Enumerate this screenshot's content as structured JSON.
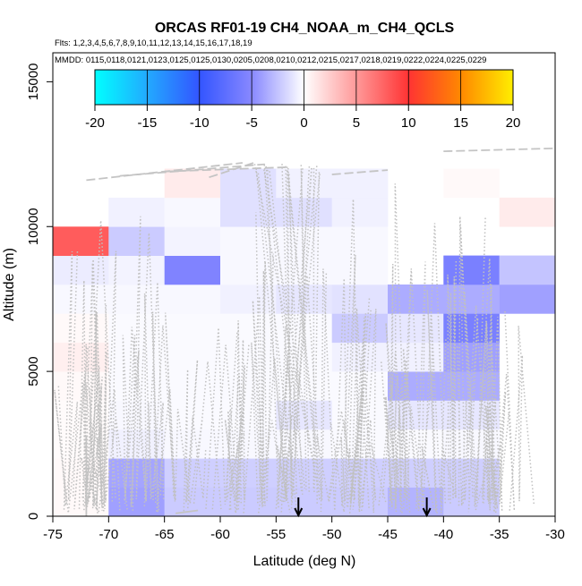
{
  "chart_data": {
    "type": "heatmap",
    "title": "ORCAS RF01-19 CH4_NOAA_m_CH4_QCLS",
    "flights_text": "Flts: 1,2,3,4,5,6,7,8,9,10,11,12,13,14,15,16,17,18,19",
    "dates_text": "MMDD: 0115,0118,0121,0123,0125,0125,0130,0205,0208,0210,0212,0215,0217,0218,0219,0222,0224,0225,0229",
    "xlabel": "Latitude (deg N)",
    "ylabel": "Altitude (m)",
    "xlim": [
      -75,
      -30
    ],
    "ylim": [
      0,
      16000
    ],
    "x_ticks": [
      -75,
      -70,
      -65,
      -60,
      -55,
      -50,
      -45,
      -40,
      -35,
      -30
    ],
    "x_tick_labels": [
      "-75",
      "-70",
      "-65",
      "-60",
      "-55",
      "-50",
      "-45",
      "-40",
      "-35",
      "-30"
    ],
    "y_ticks": [
      0,
      5000,
      10000,
      15000
    ],
    "y_tick_labels": [
      "0",
      "5000",
      "10000",
      "15000"
    ],
    "colorbar": {
      "range": [
        -20,
        20
      ],
      "ticks": [
        -20,
        -15,
        -10,
        -5,
        0,
        5,
        10,
        15,
        20
      ],
      "tick_labels": [
        "-20",
        "-15",
        "-10",
        "-5",
        "0",
        "5",
        "10",
        "15",
        "20"
      ]
    },
    "bin_size": {
      "lat": 5,
      "alt": 1000
    },
    "cells": [
      {
        "lat": -75,
        "alt": 0,
        "value": 0.3
      },
      {
        "lat": -75,
        "alt": 1000,
        "value": 0.3
      },
      {
        "lat": -75,
        "alt": 2000,
        "value": 0.2
      },
      {
        "lat": -75,
        "alt": 3000,
        "value": 0.2
      },
      {
        "lat": -75,
        "alt": 4000,
        "value": 0.3
      },
      {
        "lat": -75,
        "alt": 5000,
        "value": 0.8
      },
      {
        "lat": -75,
        "alt": 6000,
        "value": 0.3
      },
      {
        "lat": -75,
        "alt": 7000,
        "value": -0.3
      },
      {
        "lat": -75,
        "alt": 8000,
        "value": -0.8
      },
      {
        "lat": -75,
        "alt": 9000,
        "value": 8.0
      },
      {
        "lat": -70,
        "alt": 0,
        "value": -4.0
      },
      {
        "lat": -70,
        "alt": 1000,
        "value": -3.8
      },
      {
        "lat": -70,
        "alt": 2000,
        "value": -0.6
      },
      {
        "lat": -70,
        "alt": 3000,
        "value": -0.3
      },
      {
        "lat": -70,
        "alt": 4000,
        "value": -0.2
      },
      {
        "lat": -70,
        "alt": 5000,
        "value": -0.2
      },
      {
        "lat": -70,
        "alt": 6000,
        "value": -0.2
      },
      {
        "lat": -70,
        "alt": 7000,
        "value": -0.3
      },
      {
        "lat": -70,
        "alt": 8000,
        "value": -0.5
      },
      {
        "lat": -70,
        "alt": 9000,
        "value": -2.2
      },
      {
        "lat": -70,
        "alt": 10000,
        "value": -0.6
      },
      {
        "lat": -65,
        "alt": 0,
        "value": -2.2
      },
      {
        "lat": -65,
        "alt": 1000,
        "value": -2.0
      },
      {
        "lat": -65,
        "alt": 2000,
        "value": -0.3
      },
      {
        "lat": -65,
        "alt": 3000,
        "value": -0.2
      },
      {
        "lat": -65,
        "alt": 4000,
        "value": -0.2
      },
      {
        "lat": -65,
        "alt": 5000,
        "value": -0.2
      },
      {
        "lat": -65,
        "alt": 6000,
        "value": -0.2
      },
      {
        "lat": -65,
        "alt": 7000,
        "value": -0.3
      },
      {
        "lat": -65,
        "alt": 8000,
        "value": -5.5
      },
      {
        "lat": -65,
        "alt": 9000,
        "value": -0.5
      },
      {
        "lat": -65,
        "alt": 10000,
        "value": -0.3
      },
      {
        "lat": -65,
        "alt": 11000,
        "value": 1.0
      },
      {
        "lat": -60,
        "alt": 0,
        "value": -2.2
      },
      {
        "lat": -60,
        "alt": 1000,
        "value": -2.0
      },
      {
        "lat": -60,
        "alt": 2000,
        "value": -0.3
      },
      {
        "lat": -60,
        "alt": 3000,
        "value": -0.2
      },
      {
        "lat": -60,
        "alt": 4000,
        "value": -0.2
      },
      {
        "lat": -60,
        "alt": 5000,
        "value": -0.2
      },
      {
        "lat": -60,
        "alt": 6000,
        "value": -0.2
      },
      {
        "lat": -60,
        "alt": 7000,
        "value": -0.6
      },
      {
        "lat": -60,
        "alt": 8000,
        "value": -0.3
      },
      {
        "lat": -60,
        "alt": 9000,
        "value": -0.3
      },
      {
        "lat": -60,
        "alt": 10000,
        "value": -1.3
      },
      {
        "lat": -60,
        "alt": 11000,
        "value": -1.3
      },
      {
        "lat": -55,
        "alt": 0,
        "value": -2.2
      },
      {
        "lat": -55,
        "alt": 1000,
        "value": -2.0
      },
      {
        "lat": -55,
        "alt": 2000,
        "value": -0.3
      },
      {
        "lat": -55,
        "alt": 3000,
        "value": -1.0
      },
      {
        "lat": -55,
        "alt": 4000,
        "value": -0.2
      },
      {
        "lat": -55,
        "alt": 5000,
        "value": -0.2
      },
      {
        "lat": -55,
        "alt": 6000,
        "value": -0.2
      },
      {
        "lat": -55,
        "alt": 7000,
        "value": -1.0
      },
      {
        "lat": -55,
        "alt": 8000,
        "value": -0.3
      },
      {
        "lat": -55,
        "alt": 9000,
        "value": -0.3
      },
      {
        "lat": -55,
        "alt": 10000,
        "value": -1.3
      },
      {
        "lat": -55,
        "alt": 11000,
        "value": -0.6
      },
      {
        "lat": -50,
        "alt": 0,
        "value": -2.2
      },
      {
        "lat": -50,
        "alt": 1000,
        "value": -2.0
      },
      {
        "lat": -50,
        "alt": 2000,
        "value": -0.2
      },
      {
        "lat": -50,
        "alt": 3000,
        "value": -0.2
      },
      {
        "lat": -50,
        "alt": 4000,
        "value": -0.2
      },
      {
        "lat": -50,
        "alt": 5000,
        "value": -0.6
      },
      {
        "lat": -50,
        "alt": 6000,
        "value": -2.2
      },
      {
        "lat": -50,
        "alt": 7000,
        "value": -1.2
      },
      {
        "lat": -50,
        "alt": 8000,
        "value": -0.3
      },
      {
        "lat": -50,
        "alt": 9000,
        "value": -0.3
      },
      {
        "lat": -50,
        "alt": 10000,
        "value": -0.6
      },
      {
        "lat": -50,
        "alt": 11000,
        "value": -0.6
      },
      {
        "lat": -45,
        "alt": 0,
        "value": -3.2
      },
      {
        "lat": -45,
        "alt": 1000,
        "value": -2.0
      },
      {
        "lat": -45,
        "alt": 2000,
        "value": -0.2
      },
      {
        "lat": -45,
        "alt": 3000,
        "value": -1.0
      },
      {
        "lat": -45,
        "alt": 4000,
        "value": -3.5
      },
      {
        "lat": -45,
        "alt": 5000,
        "value": -0.6
      },
      {
        "lat": -45,
        "alt": 6000,
        "value": -1.0
      },
      {
        "lat": -45,
        "alt": 7000,
        "value": -3.5
      },
      {
        "lat": -40,
        "alt": 0,
        "value": -2.2
      },
      {
        "lat": -40,
        "alt": 1000,
        "value": -2.0
      },
      {
        "lat": -40,
        "alt": 2000,
        "value": -0.3
      },
      {
        "lat": -40,
        "alt": 3000,
        "value": -1.0
      },
      {
        "lat": -40,
        "alt": 4000,
        "value": -3.5
      },
      {
        "lat": -40,
        "alt": 5000,
        "value": -4.0
      },
      {
        "lat": -40,
        "alt": 6000,
        "value": -5.8
      },
      {
        "lat": -40,
        "alt": 7000,
        "value": -3.5
      },
      {
        "lat": -40,
        "alt": 8000,
        "value": -5.8
      },
      {
        "lat": -40,
        "alt": 11000,
        "value": 0.3
      },
      {
        "lat": -35,
        "alt": 7000,
        "value": -4.0
      },
      {
        "lat": -35,
        "alt": 8000,
        "value": -2.5
      },
      {
        "lat": -35,
        "alt": 10000,
        "value": 1.0
      }
    ],
    "arrows": [
      {
        "lat": -53,
        "label": "arrow"
      },
      {
        "lat": -41.5,
        "label": "arrow"
      }
    ]
  }
}
